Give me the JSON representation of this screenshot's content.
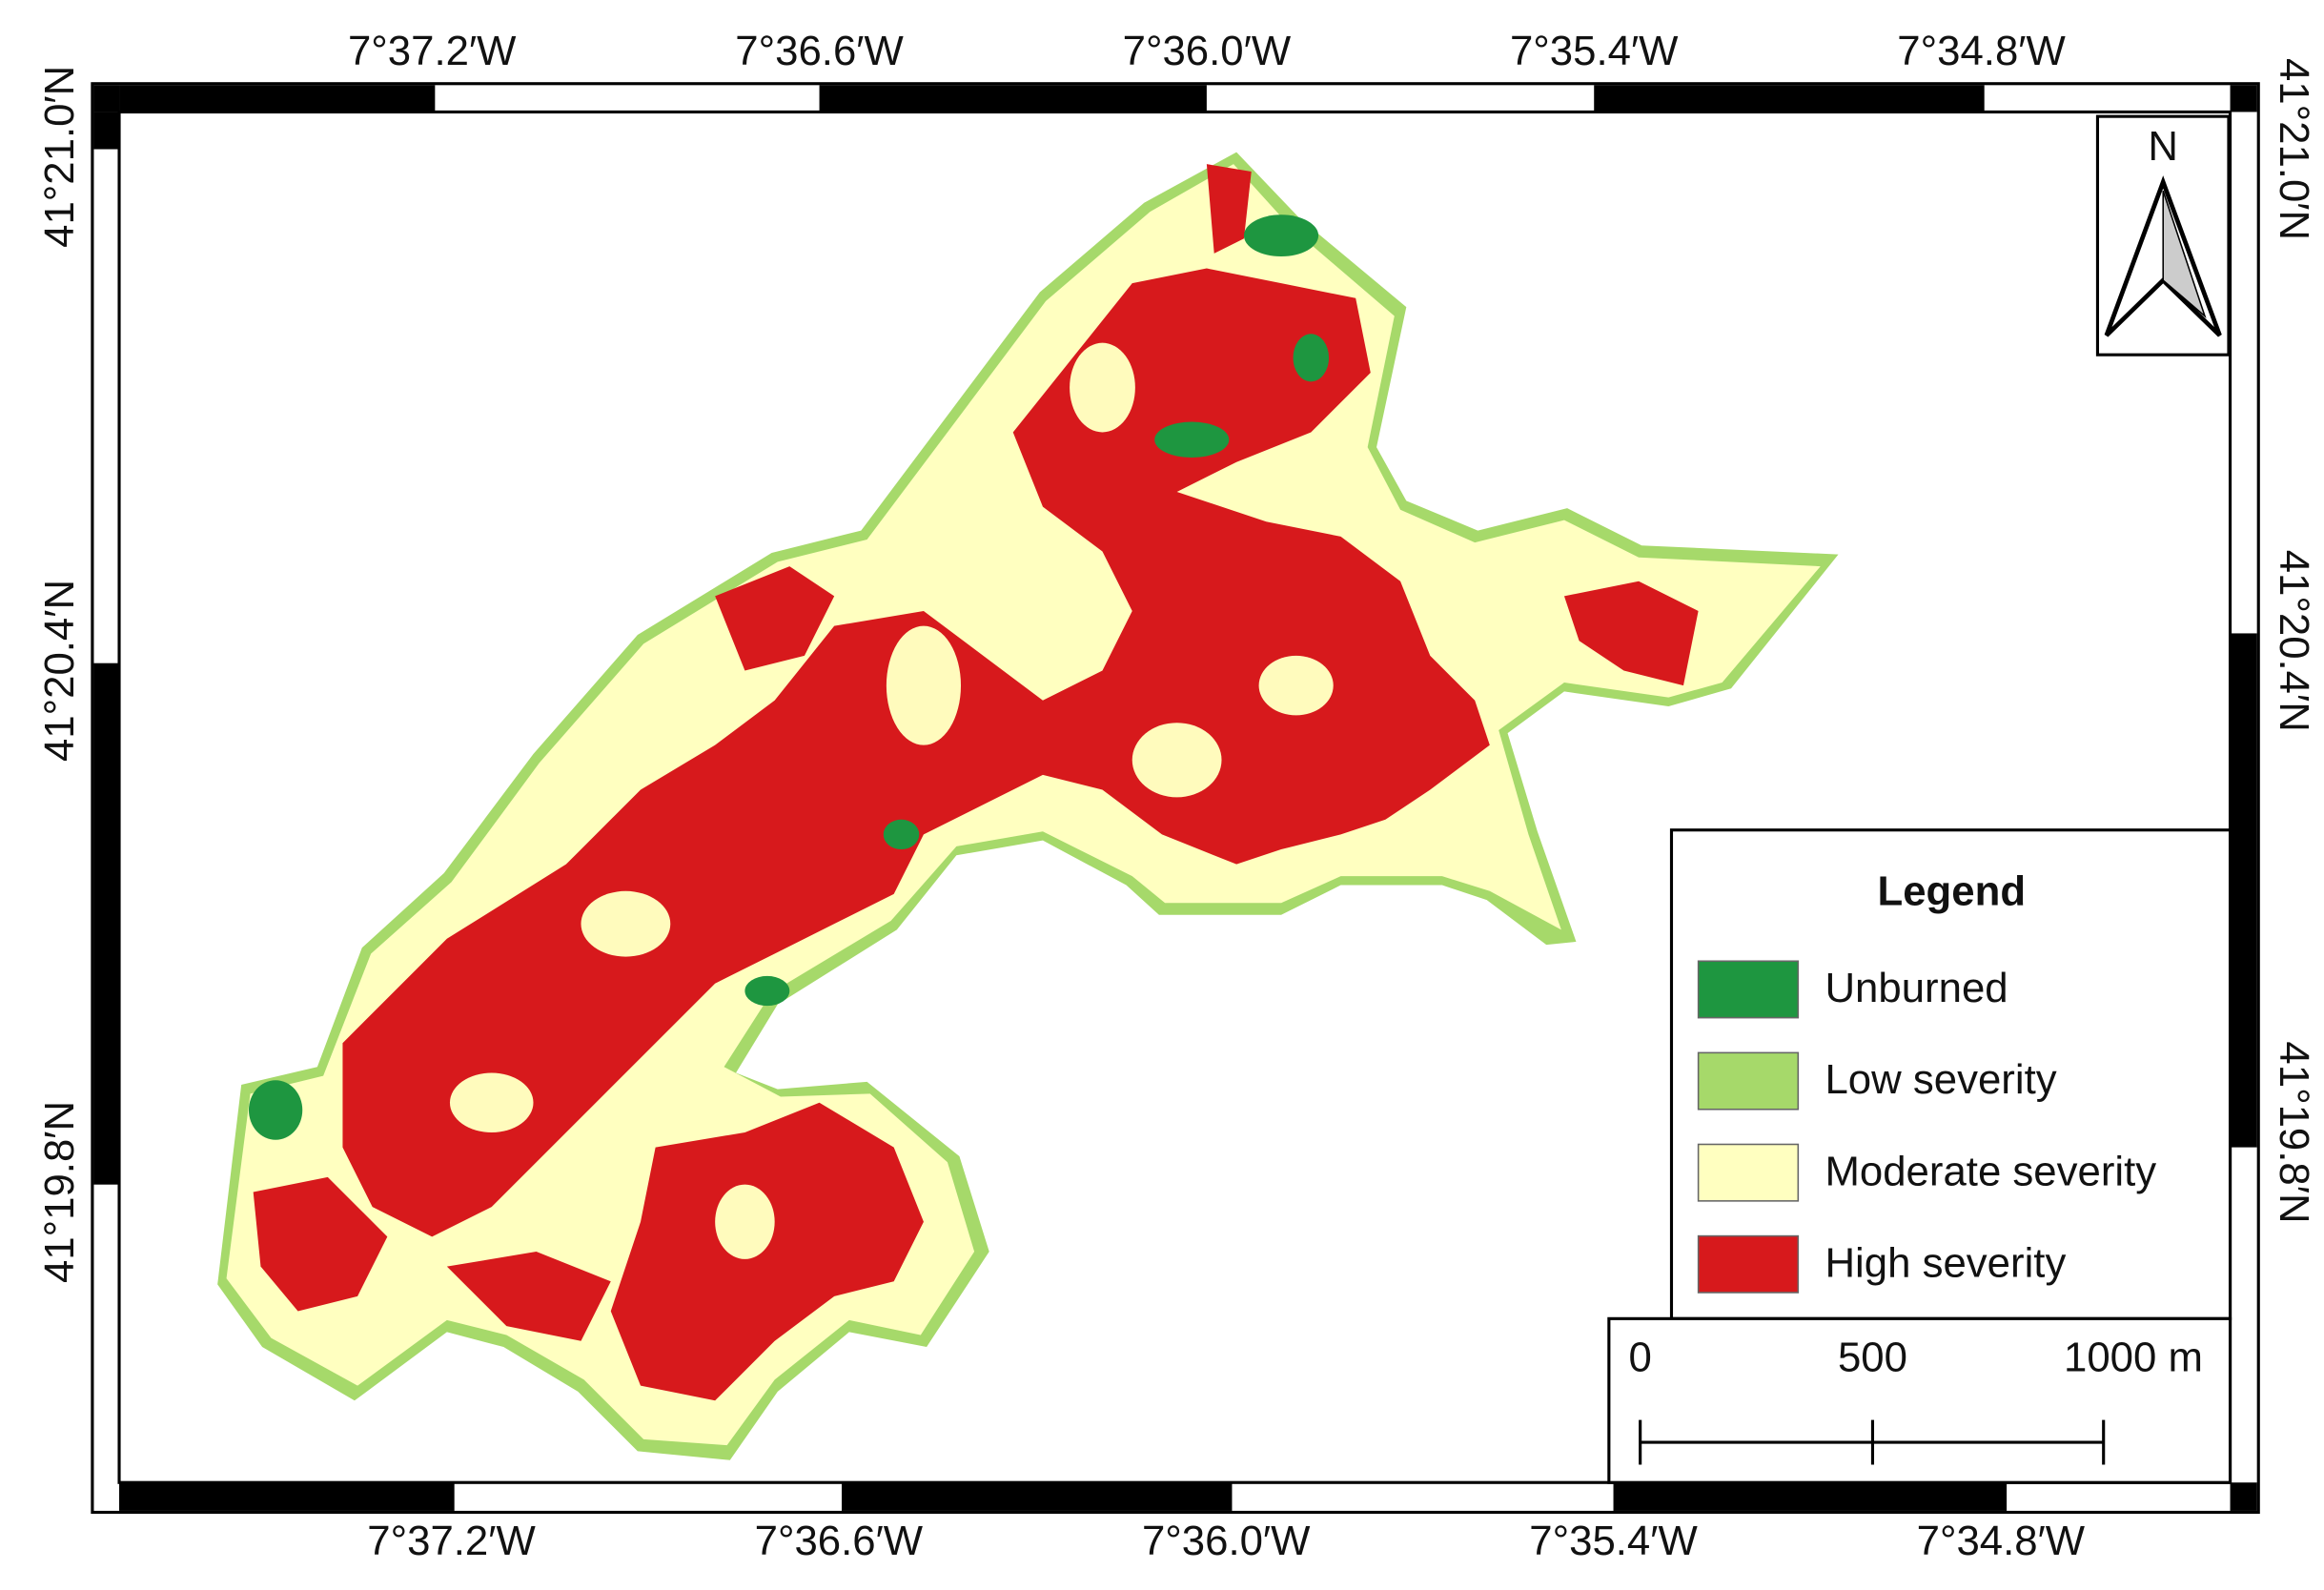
{
  "map": {
    "top_labels": [
      "7°37.2′W",
      "7°36.6′W",
      "7°36.0′W",
      "7°35.4′W",
      "7°34.8′W"
    ],
    "bottom_labels": [
      "7°37.2′W",
      "7°36.6′W",
      "7°36.0′W",
      "7°35.4′W",
      "7°34.8′W"
    ],
    "left_labels": [
      "41°21.0′N",
      "41°20.4′N",
      "41°19.8′N"
    ],
    "right_labels": [
      "41°21.0′N",
      "41°20.4′N",
      "41°19.8′N"
    ],
    "north": "N",
    "legend": {
      "title": "Legend",
      "items": [
        {
          "label": "Unburned",
          "color": "#1e9640"
        },
        {
          "label": "Low severity",
          "color": "#a6d96a"
        },
        {
          "label": "Moderate severity",
          "color": "#ffffc0"
        },
        {
          "label": "High severity",
          "color": "#d7191c"
        }
      ]
    },
    "scale_bar": {
      "labels": [
        "0",
        "500",
        "1000 m"
      ]
    }
  }
}
